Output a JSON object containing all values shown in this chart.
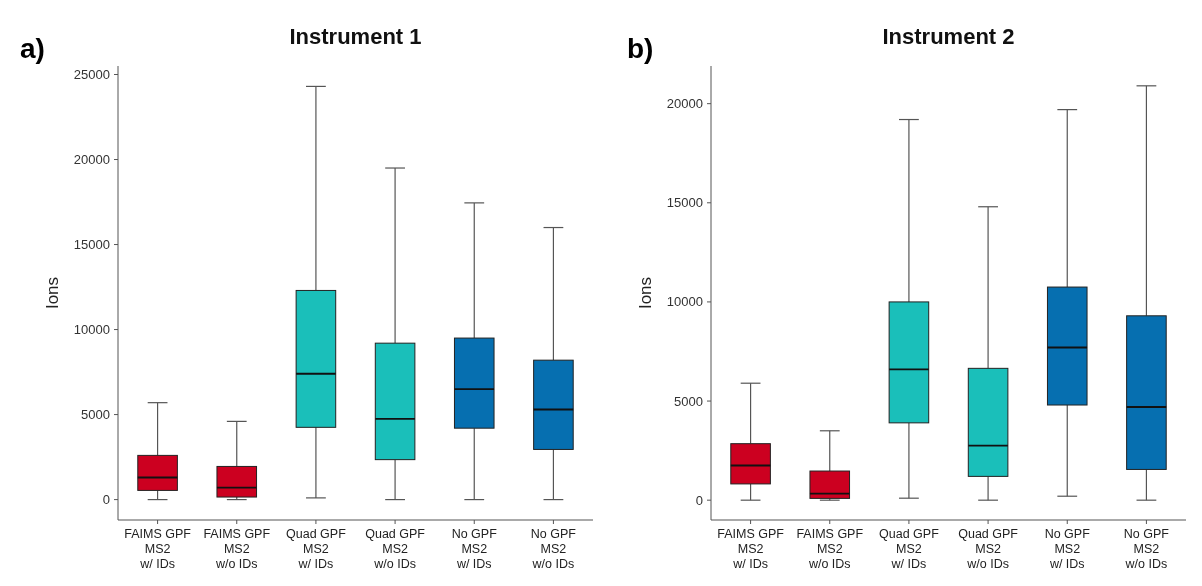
{
  "chart_data": [
    {
      "type": "box",
      "title": "Instrument 1",
      "ylabel": "Ions",
      "annotations": [
        "a)"
      ],
      "categories": [
        "FAIMS GPF\nMS2\nw/ IDs",
        "FAIMS GPF\nMS2\nw/o IDs",
        "Quad GPF\nMS2\nw/ IDs",
        "Quad GPF\nMS2\nw/o IDs",
        "No GPF\nMS2\nw/ IDs",
        "No GPF\nMS2\nw/o IDs"
      ],
      "colors": [
        "#cc0020",
        "#cc0020",
        "#1abfba",
        "#1abfba",
        "#066fb0",
        "#066fb0"
      ],
      "boxes": [
        {
          "low": 0,
          "q1": 540,
          "median": 1300,
          "q3": 2600,
          "high": 5700
        },
        {
          "low": 0,
          "q1": 150,
          "median": 700,
          "q3": 1950,
          "high": 4600
        },
        {
          "low": 100,
          "q1": 4250,
          "median": 7400,
          "q3": 12300,
          "high": 24300
        },
        {
          "low": 0,
          "q1": 2350,
          "median": 4750,
          "q3": 9200,
          "high": 19500
        },
        {
          "low": 0,
          "q1": 4200,
          "median": 6500,
          "q3": 9500,
          "high": 17450
        },
        {
          "low": 0,
          "q1": 2950,
          "median": 5300,
          "q3": 8200,
          "high": 16000
        }
      ],
      "ylim": [
        -1200,
        25500
      ],
      "yticks": [
        0,
        5000,
        10000,
        15000,
        20000,
        25000
      ],
      "grid": false
    },
    {
      "type": "box",
      "title": "Instrument 2",
      "ylabel": "Ions",
      "annotations": [
        "b)"
      ],
      "categories": [
        "FAIMS GPF\nMS2\nw/ IDs",
        "FAIMS GPF\nMS2\nw/o IDs",
        "Quad GPF\nMS2\nw/ IDs",
        "Quad GPF\nMS2\nw/o IDs",
        "No GPF\nMS2\nw/ IDs",
        "No GPF\nMS2\nw/o IDs"
      ],
      "colors": [
        "#cc0020",
        "#cc0020",
        "#1abfba",
        "#1abfba",
        "#066fb0",
        "#066fb0"
      ],
      "boxes": [
        {
          "low": 0,
          "q1": 820,
          "median": 1750,
          "q3": 2850,
          "high": 5900
        },
        {
          "low": 0,
          "q1": 90,
          "median": 330,
          "q3": 1470,
          "high": 3500
        },
        {
          "low": 100,
          "q1": 3900,
          "median": 6600,
          "q3": 10000,
          "high": 19200
        },
        {
          "low": 0,
          "q1": 1200,
          "median": 2750,
          "q3": 6650,
          "high": 14800
        },
        {
          "low": 200,
          "q1": 4800,
          "median": 7700,
          "q3": 10750,
          "high": 19700
        },
        {
          "low": 0,
          "q1": 1550,
          "median": 4700,
          "q3": 9300,
          "high": 20900
        }
      ],
      "ylim": [
        -1000,
        21900
      ],
      "yticks": [
        0,
        5000,
        10000,
        15000,
        20000
      ],
      "grid": false
    }
  ]
}
